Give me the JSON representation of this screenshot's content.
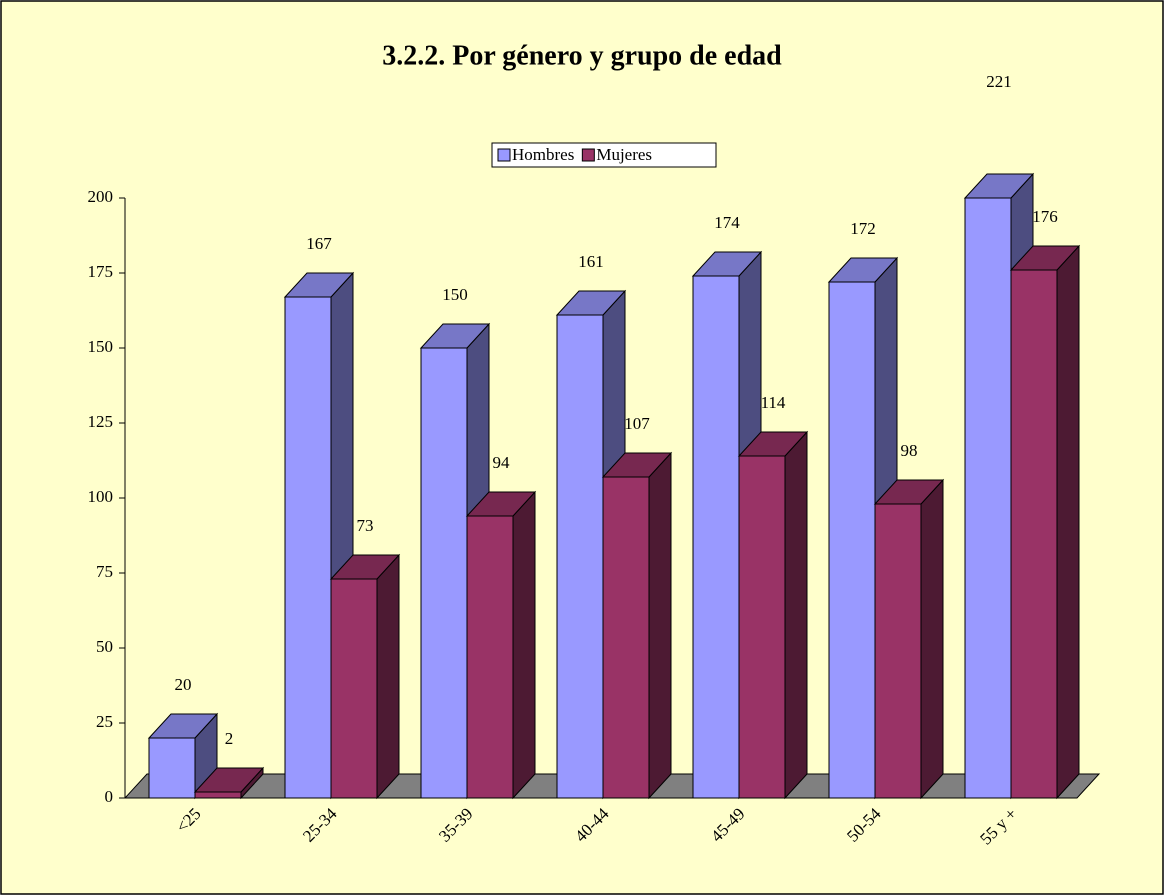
{
  "chart_data": {
    "type": "bar3d",
    "title": "3.2.2. Por género y grupo de edad",
    "categories": [
      "<25",
      "25-34",
      "35-39",
      "40-44",
      "45-49",
      "50-54",
      "55 y +"
    ],
    "series": [
      {
        "name": "Hombres",
        "color": "#9999ff",
        "values": [
          20,
          167,
          150,
          161,
          174,
          172,
          221
        ]
      },
      {
        "name": "Mujeres",
        "color": "#993366",
        "values": [
          2,
          73,
          94,
          107,
          114,
          98,
          176
        ]
      }
    ],
    "ylim": [
      0,
      200
    ],
    "yticks": [
      0,
      25,
      50,
      75,
      100,
      125,
      150,
      175,
      200
    ],
    "legend": "top"
  }
}
